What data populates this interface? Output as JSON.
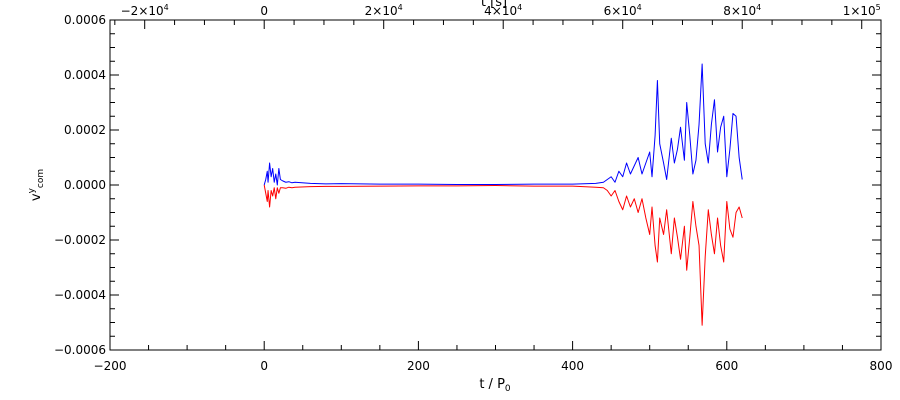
{
  "chart_data": {
    "type": "line",
    "xlabel": "t / P",
    "xlabel_sub": "0",
    "ylabel": "v",
    "ylabel_sup": "y",
    "ylabel_sub": "com",
    "top_xlabel": "t [s]",
    "xlim": [
      -200,
      800
    ],
    "ylim": [
      -0.0006,
      0.0006
    ],
    "x_ticks": [
      -200,
      0,
      200,
      400,
      600,
      800
    ],
    "x_tick_labels": [
      "−200",
      "0",
      "200",
      "400",
      "600",
      "800"
    ],
    "y_ticks": [
      -0.0006,
      -0.0004,
      -0.0002,
      0.0,
      0.0002,
      0.0004,
      0.0006
    ],
    "y_tick_labels": [
      "−0.0006",
      "−0.0004",
      "−0.0002",
      "0.0000",
      "0.0002",
      "0.0004",
      "0.0006"
    ],
    "top_axis": {
      "ticks_seconds": [
        -20000,
        0,
        20000,
        40000,
        60000,
        80000,
        100000
      ],
      "tick_x_positions": [
        -155,
        0,
        155,
        310,
        465,
        620,
        775
      ],
      "tick_labels": [
        {
          "base": "−2×10",
          "exp": "4"
        },
        {
          "base": "0",
          "exp": ""
        },
        {
          "base": "2×10",
          "exp": "4"
        },
        {
          "base": "4×10",
          "exp": "4"
        },
        {
          "base": "6×10",
          "exp": "4"
        },
        {
          "base": "8×10",
          "exp": "4"
        },
        {
          "base": "1×10",
          "exp": "5"
        }
      ]
    },
    "grid": false,
    "series": [
      {
        "color": "#0000ff",
        "points": [
          [
            0,
            0.0
          ],
          [
            2,
            2e-05
          ],
          [
            4,
            5e-05
          ],
          [
            5,
            1e-05
          ],
          [
            7,
            8e-05
          ],
          [
            9,
            3e-05
          ],
          [
            11,
            6e-05
          ],
          [
            13,
            1e-05
          ],
          [
            15,
            4e-05
          ],
          [
            17,
            0.0
          ],
          [
            19,
            6e-05
          ],
          [
            21,
            2e-05
          ],
          [
            24,
            1.5e-05
          ],
          [
            28,
            1e-05
          ],
          [
            32,
            1.2e-05
          ],
          [
            36,
            8e-06
          ],
          [
            40,
            1e-05
          ],
          [
            60,
            6e-06
          ],
          [
            80,
            4e-06
          ],
          [
            100,
            5e-06
          ],
          [
            150,
            3e-06
          ],
          [
            200,
            3e-06
          ],
          [
            250,
            2e-06
          ],
          [
            300,
            2e-06
          ],
          [
            350,
            3e-06
          ],
          [
            400,
            3e-06
          ],
          [
            430,
            6e-06
          ],
          [
            440,
            1e-05
          ],
          [
            445,
            2e-05
          ],
          [
            450,
            3e-05
          ],
          [
            455,
            1e-05
          ],
          [
            460,
            5e-05
          ],
          [
            465,
            3e-05
          ],
          [
            470,
            8e-05
          ],
          [
            475,
            4e-05
          ],
          [
            480,
            7e-05
          ],
          [
            485,
            0.0001
          ],
          [
            490,
            4e-05
          ],
          [
            495,
            8e-05
          ],
          [
            500,
            0.00012
          ],
          [
            503,
            3e-05
          ],
          [
            507,
            0.00018
          ],
          [
            510,
            0.00038
          ],
          [
            513,
            0.00015
          ],
          [
            518,
            8e-05
          ],
          [
            522,
            2e-05
          ],
          [
            528,
            0.00017
          ],
          [
            532,
            8e-05
          ],
          [
            536,
            0.00013
          ],
          [
            540,
            0.00021
          ],
          [
            545,
            9e-05
          ],
          [
            548,
            0.0003
          ],
          [
            552,
            0.00018
          ],
          [
            556,
            4e-05
          ],
          [
            560,
            9e-05
          ],
          [
            564,
            0.00022
          ],
          [
            568,
            0.00044
          ],
          [
            572,
            0.00015
          ],
          [
            576,
            8e-05
          ],
          [
            580,
            0.00022
          ],
          [
            584,
            0.00031
          ],
          [
            588,
            0.00012
          ],
          [
            592,
            0.00021
          ],
          [
            596,
            0.00025
          ],
          [
            600,
            3e-05
          ],
          [
            604,
            0.00013
          ],
          [
            608,
            0.00026
          ],
          [
            612,
            0.00025
          ],
          [
            616,
            0.0001
          ],
          [
            620,
            2e-05
          ]
        ]
      },
      {
        "color": "#ff0000",
        "points": [
          [
            0,
            0.0
          ],
          [
            2,
            -3e-05
          ],
          [
            4,
            -6e-05
          ],
          [
            5,
            -2e-05
          ],
          [
            7,
            -8e-05
          ],
          [
            9,
            -2e-05
          ],
          [
            11,
            -4e-05
          ],
          [
            13,
            -1e-05
          ],
          [
            15,
            -5e-05
          ],
          [
            17,
            -1e-05
          ],
          [
            19,
            -3e-05
          ],
          [
            21,
            -1e-05
          ],
          [
            24,
            -1e-05
          ],
          [
            28,
            -1.2e-05
          ],
          [
            32,
            -8e-06
          ],
          [
            36,
            -1e-05
          ],
          [
            40,
            -8e-06
          ],
          [
            60,
            -6e-06
          ],
          [
            80,
            -5e-06
          ],
          [
            100,
            -5e-06
          ],
          [
            150,
            -4e-06
          ],
          [
            200,
            -3e-06
          ],
          [
            250,
            -3e-06
          ],
          [
            300,
            -2e-06
          ],
          [
            350,
            -4e-06
          ],
          [
            400,
            -4e-06
          ],
          [
            430,
            -8e-06
          ],
          [
            440,
            -1e-05
          ],
          [
            445,
            -2e-05
          ],
          [
            450,
            -4e-05
          ],
          [
            455,
            -2e-05
          ],
          [
            460,
            -6e-05
          ],
          [
            465,
            -9e-05
          ],
          [
            470,
            -4e-05
          ],
          [
            475,
            -8e-05
          ],
          [
            480,
            -5e-05
          ],
          [
            485,
            -0.0001
          ],
          [
            490,
            -5e-05
          ],
          [
            495,
            -0.00012
          ],
          [
            500,
            -0.00018
          ],
          [
            503,
            -8e-05
          ],
          [
            507,
            -0.00022
          ],
          [
            510,
            -0.00028
          ],
          [
            513,
            -0.00012
          ],
          [
            518,
            -0.00018
          ],
          [
            522,
            -9e-05
          ],
          [
            528,
            -0.00025
          ],
          [
            532,
            -0.00012
          ],
          [
            536,
            -0.00019
          ],
          [
            540,
            -0.00027
          ],
          [
            545,
            -0.00015
          ],
          [
            548,
            -0.00031
          ],
          [
            552,
            -0.00019
          ],
          [
            556,
            -6e-05
          ],
          [
            560,
            -0.00015
          ],
          [
            564,
            -0.00022
          ],
          [
            568,
            -0.00051
          ],
          [
            572,
            -0.00026
          ],
          [
            576,
            -9e-05
          ],
          [
            580,
            -0.00018
          ],
          [
            584,
            -0.00025
          ],
          [
            588,
            -0.00012
          ],
          [
            592,
            -0.00022
          ],
          [
            596,
            -0.00028
          ],
          [
            600,
            -6e-05
          ],
          [
            604,
            -0.00016
          ],
          [
            608,
            -0.00019
          ],
          [
            612,
            -0.0001
          ],
          [
            616,
            -8e-05
          ],
          [
            620,
            -0.00012
          ]
        ]
      }
    ]
  }
}
